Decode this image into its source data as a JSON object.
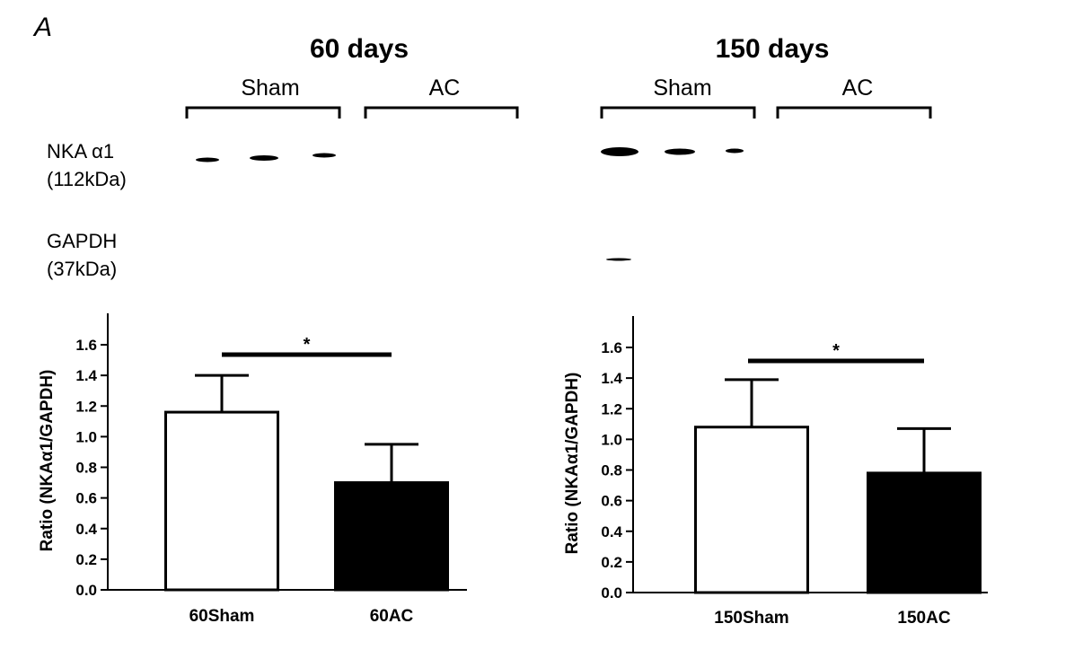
{
  "figure": {
    "panel_label": "A",
    "row_labels": {
      "nka_name": "NKA α1",
      "nka_weight": "(112kDa)",
      "gapdh_name": "GAPDH",
      "gapdh_weight": "(37kDa)"
    }
  },
  "blots": [
    {
      "title": "60 days",
      "groups": [
        "Sham",
        "AC"
      ],
      "nka_band_lanes_visible": 3,
      "gapdh_band_lanes_visible": 0
    },
    {
      "title": "150 days",
      "groups": [
        "Sham",
        "AC"
      ],
      "nka_band_lanes_visible": 3,
      "gapdh_band_lanes_visible": 1
    }
  ],
  "chart_data": [
    {
      "type": "bar",
      "categories": [
        "60Sham",
        "60AC"
      ],
      "values": [
        1.16,
        0.7
      ],
      "errors": [
        0.24,
        0.25
      ],
      "bar_colors": [
        "#ffffff",
        "#000000"
      ],
      "ylabel": "Ratio (NKAα1/GAPDH)",
      "ylim": [
        0,
        1.6
      ],
      "yticks": [
        "0.0",
        "0.2",
        "0.4",
        "0.6",
        "0.8",
        "1.0",
        "1.2",
        "1.4",
        "1.6"
      ],
      "significance": "*",
      "grid": false
    },
    {
      "type": "bar",
      "categories": [
        "150Sham",
        "150AC"
      ],
      "values": [
        1.08,
        0.78
      ],
      "errors": [
        0.31,
        0.29
      ],
      "bar_colors": [
        "#ffffff",
        "#000000"
      ],
      "ylabel": "Ratio (NKAα1/GAPDH)",
      "ylim": [
        0,
        1.6
      ],
      "yticks": [
        "0.0",
        "0.2",
        "0.4",
        "0.6",
        "0.8",
        "1.0",
        "1.2",
        "1.4",
        "1.6"
      ],
      "significance": "*",
      "grid": false
    }
  ]
}
